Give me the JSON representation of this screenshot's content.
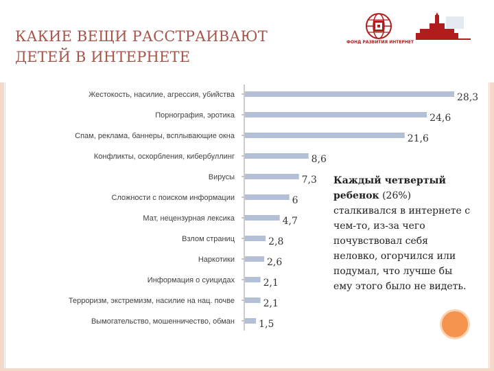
{
  "slide": {
    "title_line1": "КАКИЕ ВЕЩИ РАССТРАИВАЮТ",
    "title_line2": "ДЕТЕЙ В ИНТЕРНЕТЕ",
    "logo_left_text": "ФОНД РАЗВИТИЯ ИНТЕРНЕТ",
    "logo_left_icon": "globe-logo-icon",
    "logo_right_icon": "university-building-icon",
    "note_bold": "Каждый четвертый ребенок",
    "note_rest": " (26%) сталкивался в интернете с чем-то, из-за чего почувствовал себя неловко, огорчился или подумал, что лучше бы ему этого было не видеть.",
    "accent_color": "#a65449",
    "bar_color": "#b3bfd6",
    "circle_color": "#f5944f"
  },
  "chart_data": {
    "type": "bar",
    "orientation": "horizontal",
    "categories": [
      "Жестокость, насилие, агрессия, убийства",
      "Порнография, эротика",
      "Спам, реклама, баннеры, всплывающие окна",
      "Конфликты, оскорбления, кибербуллинг",
      "Вирусы",
      "Сложности с поиском информации",
      "Мат, нецензурная лексика",
      "Взлом страниц",
      "Наркотики",
      "Информация о суицидах",
      "Терроризм, экстремизм, насилие на нац. почве",
      "Вымогательство, мошенничество, обман"
    ],
    "values": [
      28.3,
      24.6,
      21.6,
      8.6,
      7.3,
      6,
      4.7,
      2.8,
      2.6,
      2.1,
      2.1,
      1.5
    ],
    "value_labels": [
      "28,3",
      "24,6",
      "21,6",
      "8,6",
      "7,3",
      "6",
      "4,7",
      "2,8",
      "2,6",
      "2,1",
      "2,1",
      "1,5"
    ],
    "xlim": [
      0,
      28.3
    ],
    "grid": false,
    "legend": "none"
  }
}
